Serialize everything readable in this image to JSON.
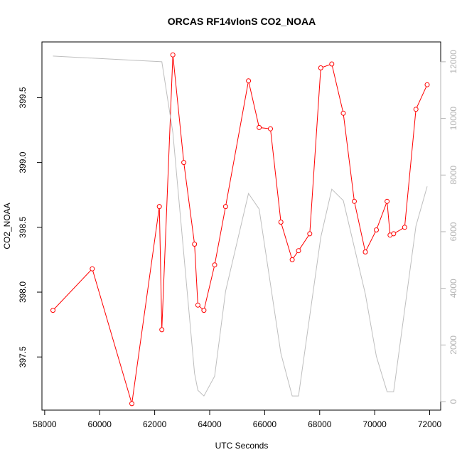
{
  "chart_data": {
    "type": "line",
    "title": "ORCAS RF14vlonS CO2_NOAA",
    "xlabel": "UTC Seconds",
    "ylabel": "CO2_NOAA",
    "xlim": [
      57900,
      72400
    ],
    "ylim": [
      397.09,
      399.93
    ],
    "y2lim": [
      -300,
      12700
    ],
    "x_ticks": [
      58000,
      60000,
      62000,
      64000,
      66000,
      68000,
      70000,
      72000
    ],
    "y_ticks": [
      397.5,
      398.0,
      398.5,
      399.0,
      399.5
    ],
    "y_tick_labels": [
      "397.5",
      "398.0",
      "398.5",
      "399.0",
      "399.5"
    ],
    "y2_ticks": [
      0,
      2000,
      4000,
      6000,
      8000,
      10000,
      12000
    ],
    "grid": false,
    "legend": "none",
    "series": [
      {
        "axis": "left",
        "color": "#ff0000",
        "markers": true,
        "x": [
          58300,
          59730,
          61170,
          62170,
          62260,
          62660,
          63060,
          63450,
          63570,
          63790,
          64180,
          64580,
          65410,
          65800,
          66210,
          66590,
          67000,
          67230,
          67640,
          68040,
          68440,
          68860,
          69260,
          69660,
          70060,
          70450,
          70560,
          70690,
          71090,
          71500,
          71910
        ],
        "y": [
          397.86,
          398.18,
          397.14,
          398.66,
          397.71,
          399.83,
          399.0,
          398.37,
          397.9,
          397.86,
          398.21,
          398.66,
          399.63,
          399.27,
          399.26,
          398.54,
          398.25,
          398.32,
          398.45,
          399.73,
          399.76,
          399.38,
          398.7,
          398.31,
          398.48,
          398.7,
          398.44,
          398.45,
          398.5,
          399.41,
          399.6
        ]
      },
      {
        "axis": "right",
        "color": "#bebebe",
        "markers": false,
        "x": [
          58300,
          62260,
          62660,
          63450,
          63570,
          63790,
          64180,
          64580,
          65410,
          65800,
          66590,
          67000,
          67230,
          68040,
          68440,
          68860,
          69660,
          70060,
          70450,
          70690,
          71500,
          71910
        ],
        "y": [
          12200,
          12000,
          9500,
          1000,
          400,
          200,
          900,
          3900,
          7350,
          6800,
          1700,
          200,
          200,
          5800,
          7500,
          7100,
          3800,
          1600,
          350,
          350,
          6200,
          7600
        ]
      }
    ]
  }
}
